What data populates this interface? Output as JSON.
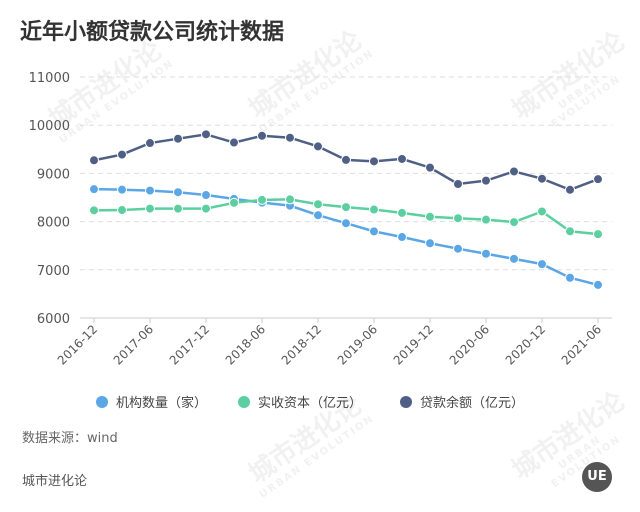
{
  "header": {
    "title": "近年小额贷款公司统计数据"
  },
  "watermark": {
    "cn": "城市进化论",
    "en": "URBAN EVOLUTION"
  },
  "footer": {
    "source": "数据来源：wind",
    "brand": "城市进化论",
    "logo": "UE"
  },
  "chart_data": {
    "type": "line",
    "title": "近年小额贷款公司统计数据",
    "x": [
      "2016-12",
      "2017-03",
      "2017-06",
      "2017-09",
      "2017-12",
      "2018-03",
      "2018-06",
      "2018-09",
      "2018-12",
      "2019-03",
      "2019-06",
      "2019-09",
      "2019-12",
      "2020-03",
      "2020-06",
      "2020-09",
      "2020-12",
      "2021-03",
      "2021-06"
    ],
    "xtick_labels": [
      "2016-12",
      "2017-06",
      "2017-12",
      "2018-06",
      "2018-12",
      "2019-06",
      "2019-12",
      "2020-06",
      "2020-12",
      "2021-06"
    ],
    "ylim": [
      6000,
      11000
    ],
    "yticks": [
      6000,
      7000,
      8000,
      9000,
      10000,
      11000
    ],
    "grid": true,
    "legend_position": "bottom",
    "series": [
      {
        "name": "机构数量（家）",
        "color": "#5aa6e6",
        "values": [
          8673,
          8663,
          8643,
          8610,
          8551,
          8471,
          8394,
          8331,
          8133,
          7967,
          7797,
          7680,
          7551,
          7438,
          7333,
          7227,
          7118,
          6835,
          6686
        ]
      },
      {
        "name": "实收资本（亿元）",
        "color": "#5ccfa0",
        "values": [
          8234,
          8240,
          8270,
          8268,
          8270,
          8390,
          8450,
          8460,
          8360,
          8300,
          8250,
          8180,
          8100,
          8070,
          8040,
          7990,
          8210,
          7800,
          7740
        ]
      },
      {
        "name": "贷款余额（亿元）",
        "color": "#4f5f85",
        "values": [
          9273,
          9390,
          9630,
          9720,
          9810,
          9640,
          9780,
          9740,
          9560,
          9280,
          9250,
          9300,
          9120,
          8780,
          8850,
          9040,
          8890,
          8660,
          8880
        ]
      }
    ]
  }
}
